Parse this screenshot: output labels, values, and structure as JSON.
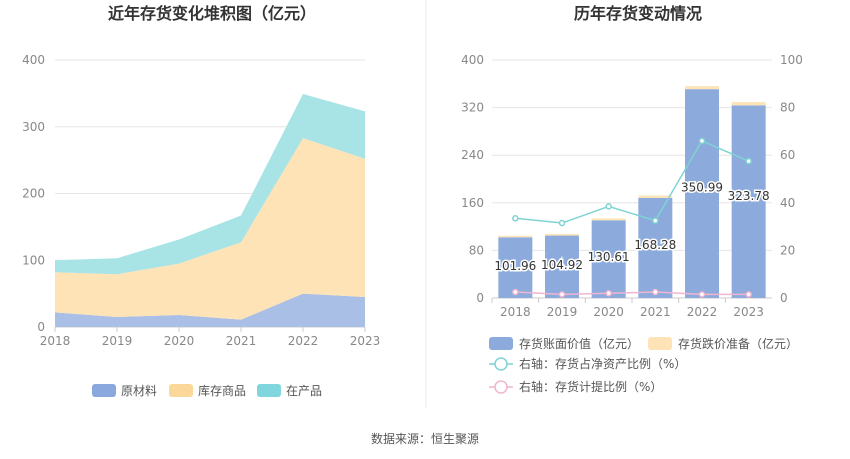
{
  "source": "数据来源：恒生聚源",
  "chart_data": [
    {
      "type": "area",
      "title": "近年存货变化堆积图（亿元）",
      "x": [
        "2018",
        "2019",
        "2020",
        "2021",
        "2022",
        "2023"
      ],
      "ylim": [
        0,
        400
      ],
      "yticks": [
        "0",
        "100",
        "200",
        "300",
        "400"
      ],
      "stacked": true,
      "grid": true,
      "legend_position": "bottom",
      "series": [
        {
          "name": "在产品",
          "values": [
            22,
            15,
            18,
            11,
            50,
            45
          ],
          "color": "#aabfe6"
        },
        {
          "name": "库存商品",
          "values": [
            60,
            64,
            77,
            116,
            233,
            207
          ],
          "color": "#fde3b6"
        },
        {
          "name": "原材料",
          "values": [
            18,
            24,
            36,
            40,
            66,
            71
          ],
          "color": "#a8e3e6"
        }
      ],
      "legend_colors": [
        "#7fd6dc",
        "#fcd79a",
        "#8aa8dd"
      ]
    },
    {
      "type": "bar",
      "title": "历年存货变动情况",
      "categories": [
        "2018",
        "2019",
        "2020",
        "2021",
        "2022",
        "2023"
      ],
      "ylim": [
        0,
        400
      ],
      "yticks": [
        "0",
        "80",
        "160",
        "240",
        "320",
        "400"
      ],
      "y2lim": [
        0,
        100
      ],
      "y2ticks": [
        "0",
        "20",
        "40",
        "60",
        "80",
        "100"
      ],
      "grid": true,
      "legend_position": "bottom",
      "bar_labels": [
        "101.96",
        "104.92",
        "130.61",
        "168.28",
        "350.99",
        "323.78"
      ],
      "series": [
        {
          "name": "存货账面价值（亿元）",
          "values": [
            101.96,
            104.92,
            130.61,
            168.28,
            350.99,
            323.78
          ],
          "color": "#8cabdc",
          "axis": "left"
        },
        {
          "name": "存货跌价准备（亿元）",
          "values": [
            2.5,
            2.5,
            3.0,
            4.0,
            5.0,
            5.5
          ],
          "color": "#fde3b6",
          "axis": "left"
        },
        {
          "name": "右轴：存货占净资产比例（%）",
          "values": [
            33.5,
            31.5,
            38.5,
            32.5,
            66.0,
            57.5
          ],
          "color": "#7fd3d4",
          "axis": "right",
          "kind": "line"
        },
        {
          "name": "右轴：存货计提比例（%）",
          "values": [
            2.5,
            1.5,
            2.0,
            2.5,
            1.5,
            1.5
          ],
          "color": "#f0b5cf",
          "axis": "right",
          "kind": "line"
        }
      ]
    }
  ]
}
